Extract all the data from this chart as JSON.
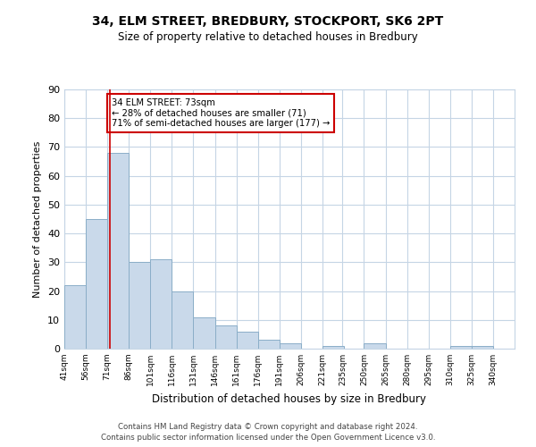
{
  "title": "34, ELM STREET, BREDBURY, STOCKPORT, SK6 2PT",
  "subtitle": "Size of property relative to detached houses in Bredbury",
  "xlabel": "Distribution of detached houses by size in Bredbury",
  "ylabel": "Number of detached properties",
  "bins_left": [
    41,
    56,
    71,
    86,
    101,
    116,
    131,
    146,
    161,
    176,
    191,
    206,
    221,
    235,
    250,
    265,
    280,
    295,
    310,
    325
  ],
  "bin_width": 15,
  "counts": [
    22,
    45,
    68,
    30,
    31,
    20,
    11,
    8,
    6,
    3,
    2,
    0,
    1,
    0,
    2,
    0,
    0,
    0,
    1,
    1
  ],
  "bar_facecolor": "#c9d9ea",
  "bar_edgecolor": "#8baec8",
  "grid_color": "#c5d5e5",
  "background_color": "#ffffff",
  "property_line_x": 73,
  "property_line_color": "#cc0000",
  "annotation_text": "34 ELM STREET: 73sqm\n← 28% of detached houses are smaller (71)\n71% of semi-detached houses are larger (177) →",
  "annotation_box_edgecolor": "#cc0000",
  "ylim": [
    0,
    90
  ],
  "yticks": [
    0,
    10,
    20,
    30,
    40,
    50,
    60,
    70,
    80,
    90
  ],
  "tick_labels": [
    "41sqm",
    "56sqm",
    "71sqm",
    "86sqm",
    "101sqm",
    "116sqm",
    "131sqm",
    "146sqm",
    "161sqm",
    "176sqm",
    "191sqm",
    "206sqm",
    "221sqm",
    "235sqm",
    "250sqm",
    "265sqm",
    "280sqm",
    "295sqm",
    "310sqm",
    "325sqm",
    "340sqm"
  ],
  "footer_line1": "Contains HM Land Registry data © Crown copyright and database right 2024.",
  "footer_line2": "Contains public sector information licensed under the Open Government Licence v3.0."
}
